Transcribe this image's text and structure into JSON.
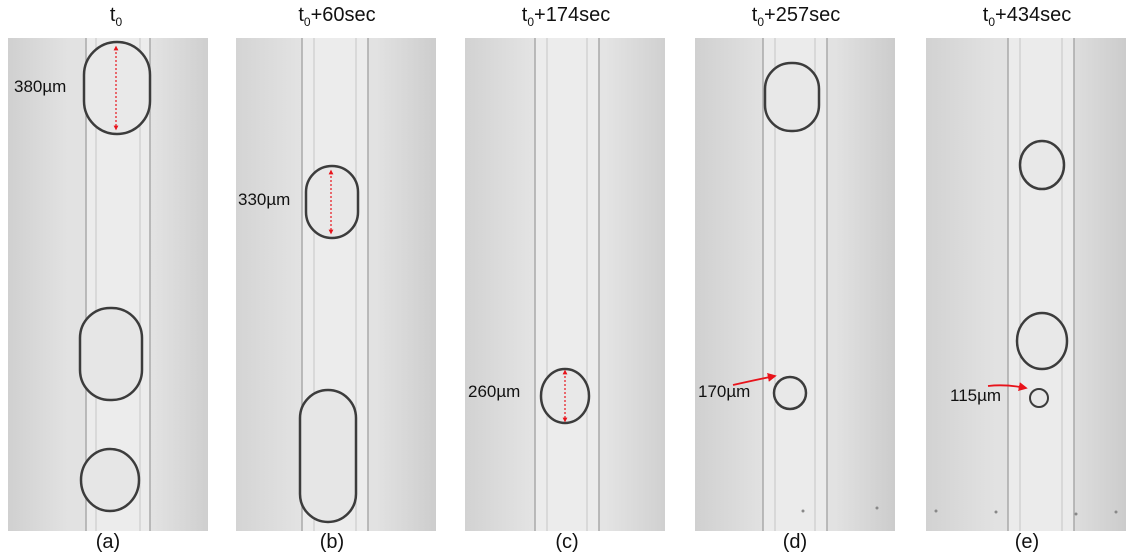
{
  "panels": [
    {
      "time_base": "t",
      "time_sub": "0",
      "time_suffix": "",
      "caption": "(a)",
      "measurement": "380µm"
    },
    {
      "time_base": "t",
      "time_sub": "0",
      "time_suffix": "+60sec",
      "caption": "(b)",
      "measurement": "330µm"
    },
    {
      "time_base": "t",
      "time_sub": "0",
      "time_suffix": "+174sec",
      "caption": "(c)",
      "measurement": "260µm"
    },
    {
      "time_base": "t",
      "time_sub": "0",
      "time_suffix": "+257sec",
      "caption": "(d)",
      "measurement": "170µm"
    },
    {
      "time_base": "t",
      "time_sub": "0",
      "time_suffix": "+434sec",
      "caption": "(e)",
      "measurement": "115µm"
    }
  ],
  "colors": {
    "arrow": "#e8131b",
    "background": "#d8d8d8",
    "channel": "#e6e6e6"
  }
}
